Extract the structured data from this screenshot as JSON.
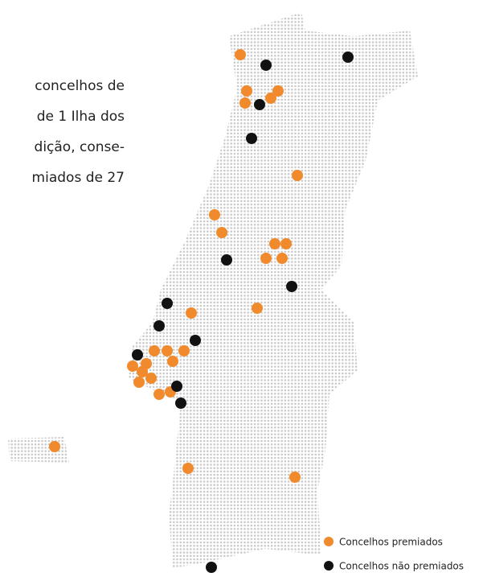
{
  "paragraph": {
    "lines": [
      "concelhos de",
      "de 1 Ilha dos",
      "dição, conse-",
      "miados de 27"
    ]
  },
  "legend": {
    "items": [
      "Concelhos premiados",
      "Concelhos não premiados"
    ]
  }
}
